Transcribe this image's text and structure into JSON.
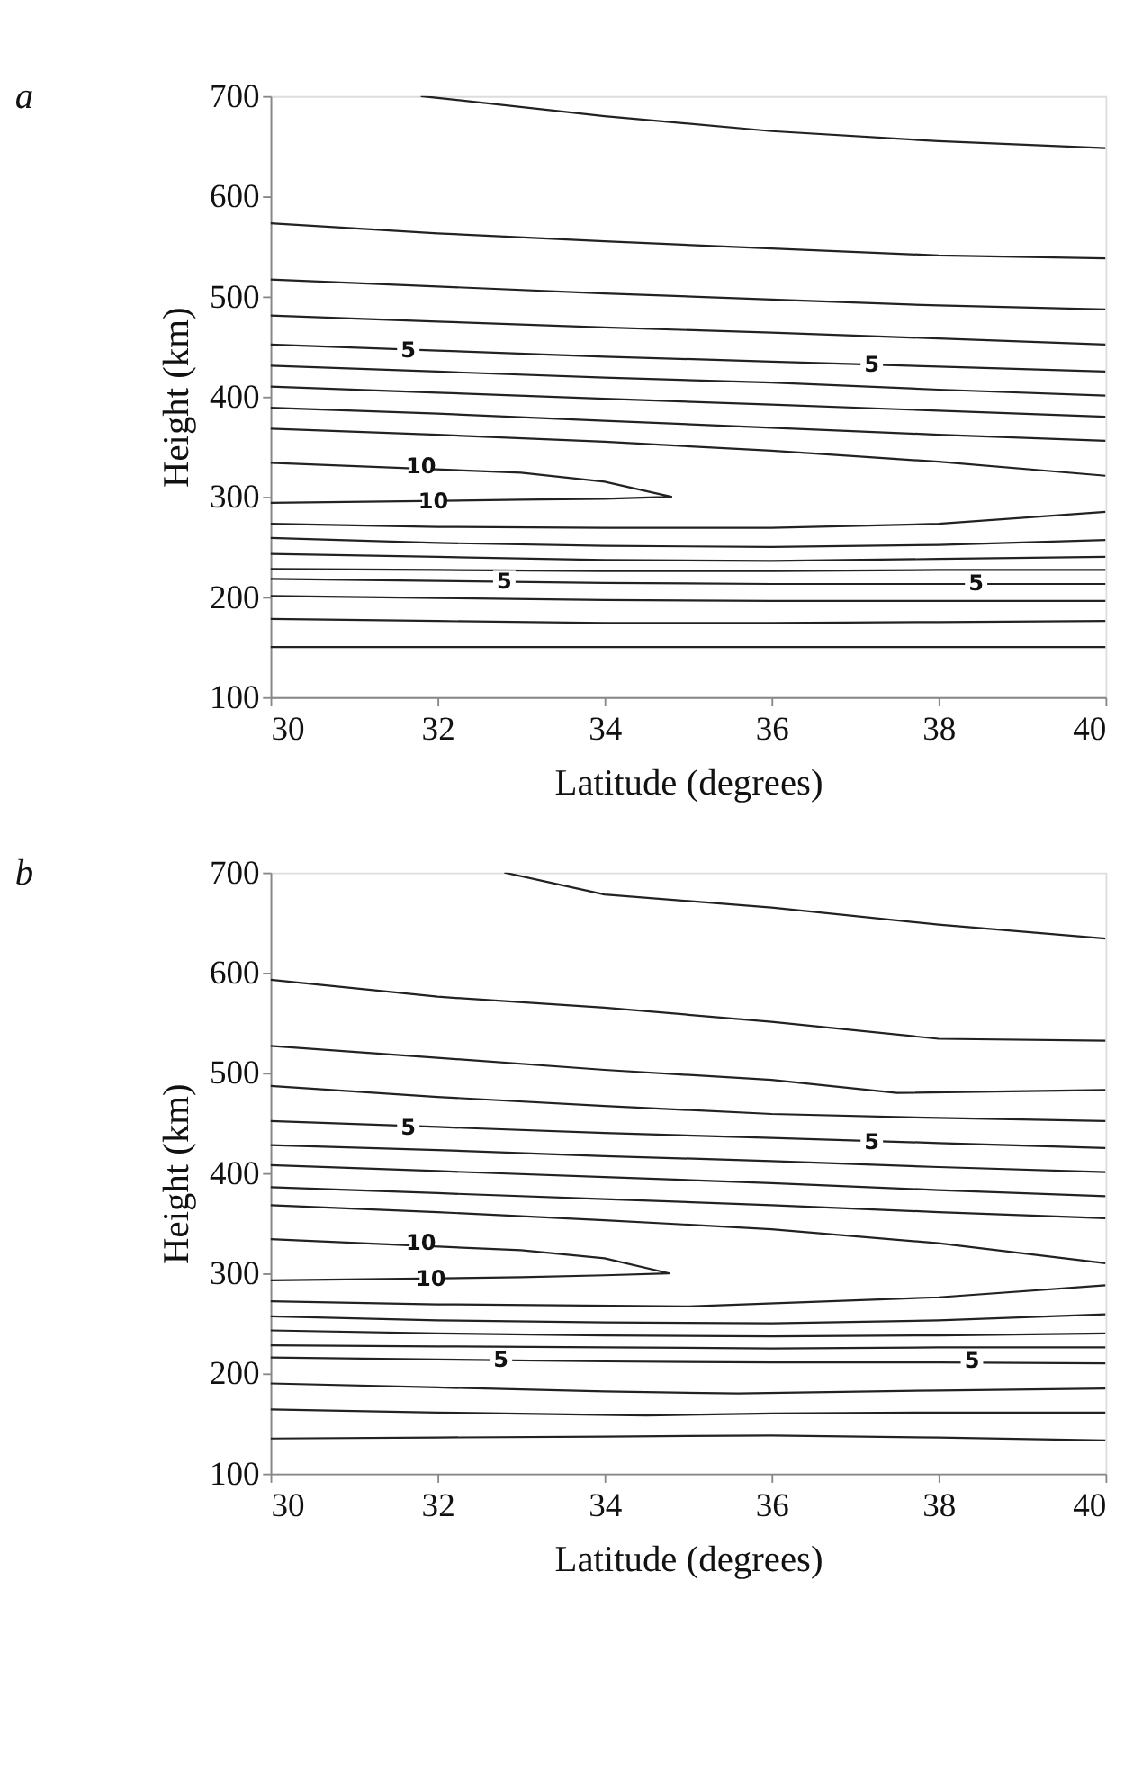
{
  "chart_data": [
    {
      "type": "line",
      "title": "a",
      "xlabel": "Latitude (degrees)",
      "ylabel": "Height (km)",
      "xlim": [
        30,
        40
      ],
      "ylim": [
        100,
        700
      ],
      "xticks": [
        30,
        32,
        34,
        36,
        38,
        40
      ],
      "yticks": [
        100,
        200,
        300,
        400,
        500,
        600,
        700
      ],
      "grid": false,
      "marker": "none",
      "line_style": "solid",
      "series": [
        {
          "color": "#222222",
          "x": [
            31.8,
            34,
            36,
            38,
            40
          ],
          "values": [
            700,
            680,
            665,
            655,
            648
          ]
        },
        {
          "color": "#222222",
          "x": [
            30,
            32,
            34,
            36,
            38,
            40
          ],
          "values": [
            573,
            563,
            555,
            548,
            541,
            538
          ]
        },
        {
          "color": "#222222",
          "x": [
            30,
            32,
            34,
            36,
            38,
            40
          ],
          "values": [
            517,
            510,
            503,
            497,
            491,
            487
          ]
        },
        {
          "color": "#222222",
          "x": [
            30,
            32,
            34,
            36,
            38,
            40
          ],
          "values": [
            481,
            475,
            469,
            464,
            458,
            452
          ]
        },
        {
          "color": "#222222",
          "x": [
            30,
            32,
            34,
            36,
            38,
            40
          ],
          "values": [
            452,
            446,
            440,
            435,
            430,
            425
          ]
        },
        {
          "color": "#222222",
          "x": [
            30,
            32,
            34,
            36,
            38,
            40
          ],
          "values": [
            431,
            425,
            419,
            414,
            407,
            401
          ]
        },
        {
          "color": "#222222",
          "x": [
            30,
            32,
            34,
            36,
            38,
            40
          ],
          "values": [
            410,
            404,
            398,
            392,
            386,
            380
          ]
        },
        {
          "color": "#222222",
          "x": [
            30,
            32,
            34,
            36,
            38,
            40
          ],
          "values": [
            389,
            383,
            376,
            369,
            362,
            356
          ]
        },
        {
          "color": "#222222",
          "x": [
            30,
            32,
            34,
            36,
            38,
            40
          ],
          "values": [
            368,
            362,
            355,
            346,
            335,
            321
          ]
        },
        {
          "color": "#222222",
          "x": [
            30,
            33,
            34,
            34.8,
            34,
            33,
            30
          ],
          "values": [
            334,
            324,
            315,
            300,
            298,
            297,
            294
          ]
        },
        {
          "color": "#222222",
          "x": [
            30,
            32,
            34,
            36,
            38,
            40
          ],
          "values": [
            273,
            270,
            269,
            269,
            273,
            285
          ]
        },
        {
          "color": "#222222",
          "x": [
            30,
            32,
            34,
            36,
            38,
            40
          ],
          "values": [
            259,
            254,
            251,
            250,
            252,
            257
          ]
        },
        {
          "color": "#222222",
          "x": [
            30,
            32,
            34,
            36,
            38,
            40
          ],
          "values": [
            243,
            240,
            237,
            236,
            238,
            240
          ]
        },
        {
          "color": "#222222",
          "x": [
            30,
            32,
            34,
            36,
            38,
            40
          ],
          "values": [
            228,
            227,
            226,
            226,
            227,
            227
          ]
        },
        {
          "color": "#222222",
          "x": [
            30,
            32,
            34,
            36,
            38,
            40
          ],
          "values": [
            218,
            216,
            214,
            213,
            213,
            213
          ]
        },
        {
          "color": "#222222",
          "x": [
            30,
            32,
            34,
            36,
            38,
            40
          ],
          "values": [
            201,
            199,
            197,
            196,
            196,
            196
          ]
        },
        {
          "color": "#222222",
          "x": [
            30,
            32,
            34,
            36,
            38,
            40
          ],
          "values": [
            178,
            176,
            174,
            174,
            175,
            176
          ]
        },
        {
          "color": "#222222",
          "x": [
            30,
            40
          ],
          "values": [
            150,
            150
          ]
        }
      ],
      "annotations": [
        {
          "text": "5",
          "x": 31.65,
          "y": 446
        },
        {
          "text": "5",
          "x": 37.2,
          "y": 432
        },
        {
          "text": "10",
          "x": 31.8,
          "y": 330
        },
        {
          "text": "10",
          "x": 31.95,
          "y": 295
        },
        {
          "text": "5",
          "x": 32.8,
          "y": 215
        },
        {
          "text": "5",
          "x": 38.45,
          "y": 213
        }
      ]
    },
    {
      "type": "line",
      "title": "b",
      "xlabel": "Latitude (degrees)",
      "ylabel": "Height (km)",
      "xlim": [
        30,
        40
      ],
      "ylim": [
        100,
        700
      ],
      "xticks": [
        30,
        32,
        34,
        36,
        38,
        40
      ],
      "yticks": [
        100,
        200,
        300,
        400,
        500,
        600,
        700
      ],
      "grid": false,
      "marker": "none",
      "line_style": "solid",
      "series": [
        {
          "color": "#222222",
          "x": [
            32.8,
            34,
            36,
            38,
            40
          ],
          "values": [
            700,
            678,
            665,
            648,
            634
          ]
        },
        {
          "color": "#222222",
          "x": [
            30,
            32,
            34,
            36,
            38,
            40
          ],
          "values": [
            593,
            576,
            565,
            551,
            534,
            532
          ]
        },
        {
          "color": "#222222",
          "x": [
            30,
            32,
            34,
            36,
            37.5,
            40
          ],
          "values": [
            527,
            515,
            503,
            493,
            480,
            483
          ]
        },
        {
          "color": "#222222",
          "x": [
            30,
            32,
            34,
            36,
            38,
            40
          ],
          "values": [
            487,
            476,
            467,
            459,
            455,
            452
          ]
        },
        {
          "color": "#222222",
          "x": [
            30,
            32,
            34,
            36,
            38,
            40
          ],
          "values": [
            452,
            446,
            440,
            435,
            430,
            425
          ]
        },
        {
          "color": "#222222",
          "x": [
            30,
            32,
            34,
            36,
            38,
            40
          ],
          "values": [
            428,
            423,
            417,
            412,
            406,
            401
          ]
        },
        {
          "color": "#222222",
          "x": [
            30,
            32,
            34,
            36,
            38,
            40
          ],
          "values": [
            408,
            402,
            396,
            390,
            383,
            377
          ]
        },
        {
          "color": "#222222",
          "x": [
            30,
            32,
            34,
            36,
            38,
            40
          ],
          "values": [
            386,
            380,
            374,
            368,
            361,
            355
          ]
        },
        {
          "color": "#222222",
          "x": [
            30,
            32,
            34,
            36,
            38,
            40
          ],
          "values": [
            368,
            361,
            353,
            344,
            330,
            310
          ]
        },
        {
          "color": "#222222",
          "x": [
            30,
            33,
            34,
            34.77,
            34,
            33,
            30
          ],
          "values": [
            334,
            323,
            315,
            300,
            298,
            296,
            293
          ]
        },
        {
          "color": "#222222",
          "x": [
            30,
            32,
            35,
            38,
            40
          ],
          "values": [
            272,
            269,
            267,
            276,
            288
          ]
        },
        {
          "color": "#222222",
          "x": [
            30,
            32,
            34,
            36,
            38,
            40
          ],
          "values": [
            257,
            253,
            251,
            250,
            253,
            259
          ]
        },
        {
          "color": "#222222",
          "x": [
            30,
            32,
            34,
            36,
            38,
            40
          ],
          "values": [
            243,
            240,
            238,
            237,
            238,
            240
          ]
        },
        {
          "color": "#222222",
          "x": [
            30,
            32,
            34,
            36,
            38,
            40
          ],
          "values": [
            228,
            227,
            226,
            225,
            226,
            226
          ]
        },
        {
          "color": "#222222",
          "x": [
            30,
            32,
            34,
            36,
            38,
            40
          ],
          "values": [
            216,
            214,
            212,
            211,
            211,
            210
          ]
        },
        {
          "color": "#222222",
          "x": [
            30,
            32,
            34,
            35.6,
            38,
            40
          ],
          "values": [
            190,
            186,
            182,
            180,
            183,
            185
          ]
        },
        {
          "color": "#222222",
          "x": [
            30,
            32,
            34.5,
            36,
            38,
            40
          ],
          "values": [
            164,
            161,
            158,
            160,
            161,
            161
          ]
        },
        {
          "color": "#222222",
          "x": [
            30,
            32,
            34,
            36,
            38,
            40
          ],
          "values": [
            135,
            136,
            137,
            138,
            136,
            133
          ]
        }
      ],
      "annotations": [
        {
          "text": "5",
          "x": 31.65,
          "y": 445
        },
        {
          "text": "5",
          "x": 37.2,
          "y": 431
        },
        {
          "text": "10",
          "x": 31.8,
          "y": 330
        },
        {
          "text": "10",
          "x": 31.92,
          "y": 294
        },
        {
          "text": "5",
          "x": 32.76,
          "y": 213
        },
        {
          "text": "5",
          "x": 38.4,
          "y": 212
        }
      ]
    }
  ]
}
